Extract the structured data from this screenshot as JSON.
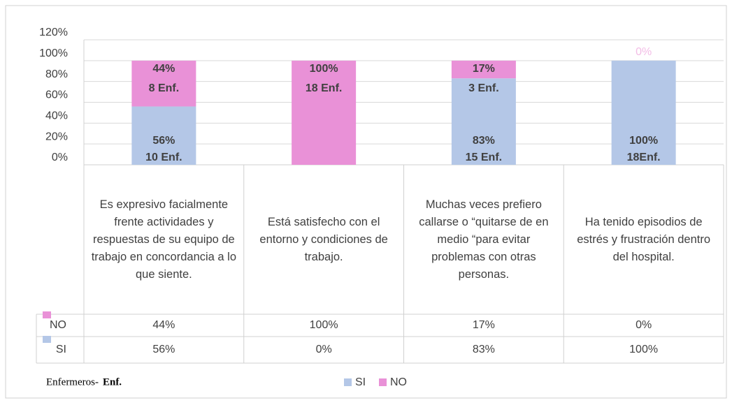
{
  "chart_data": {
    "type": "stacked_bar",
    "categories": [
      "Es expresivo facialmente frente actividades y respuestas de su equipo de trabajo en concordancia a lo que siente.",
      "Está satisfecho con el entorno y condiciones de trabajo.",
      "Muchas veces prefiero callarse o “quitarse de en medio “para evitar problemas con otras personas.",
      "Ha tenido episodios de estrés y frustración dentro del hospital."
    ],
    "series": [
      {
        "name": "SI",
        "color": "#b4c7e7",
        "values": [
          56,
          0,
          83,
          100
        ],
        "value_labels": [
          "56%",
          "0%",
          "83%",
          "100%"
        ],
        "count_labels": [
          "10 Enf.",
          null,
          "15 Enf.",
          "18Enf."
        ]
      },
      {
        "name": "NO",
        "color": "#e991d7",
        "values": [
          44,
          100,
          17,
          0
        ],
        "value_labels": [
          "44%",
          "100%",
          "17%",
          "0%"
        ],
        "count_labels": [
          "8 Enf.",
          "18 Enf.",
          "3 Enf.",
          null
        ]
      }
    ],
    "ylim": [
      0,
      120
    ],
    "yticks": [
      {
        "value": 0,
        "label": "0%"
      },
      {
        "value": 20,
        "label": "20%"
      },
      {
        "value": 40,
        "label": "40%"
      },
      {
        "value": 60,
        "label": "60%"
      },
      {
        "value": 80,
        "label": "80%"
      },
      {
        "value": 100,
        "label": "100%"
      },
      {
        "value": 120,
        "label": "120%"
      }
    ],
    "grid": true,
    "legend": "bottom",
    "note": [
      "Enfermeros-",
      "Enf."
    ]
  }
}
